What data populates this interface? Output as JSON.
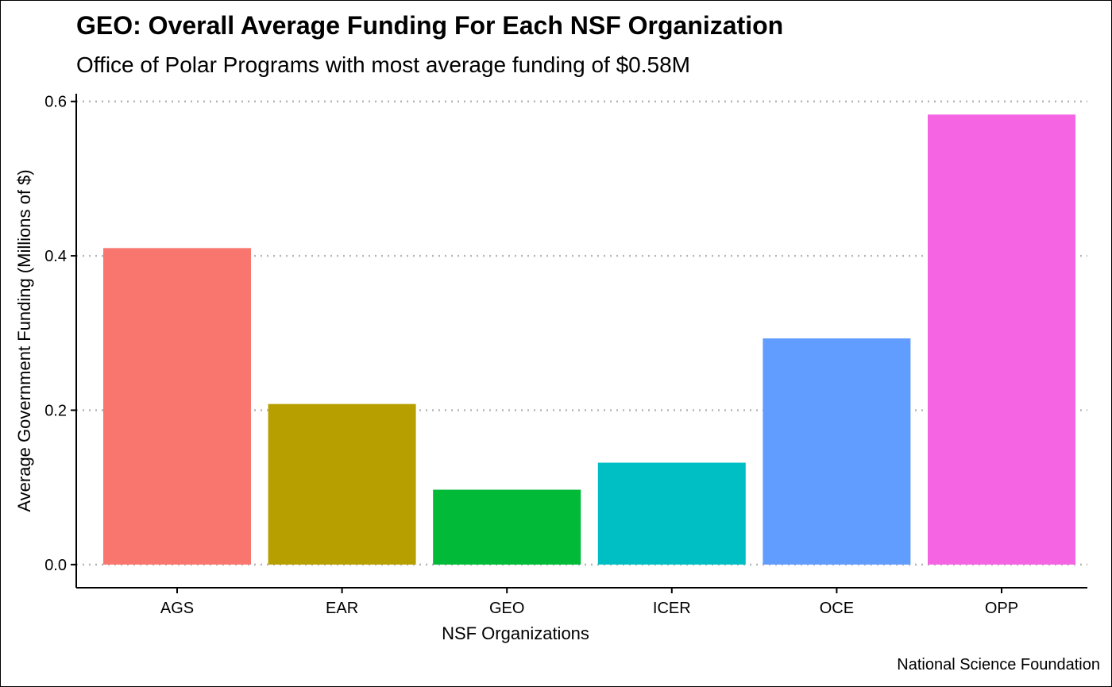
{
  "chart_data": {
    "type": "bar",
    "title": "GEO: Overall Average Funding For Each NSF Organization",
    "subtitle": "Office of Polar Programs with most average funding of $0.58M",
    "xlabel": "NSF Organizations",
    "ylabel": "Average Government Funding (Millions of $)",
    "caption": "National Science Foundation",
    "categories": [
      "AGS",
      "EAR",
      "GEO",
      "ICER",
      "OCE",
      "OPP"
    ],
    "values": [
      0.41,
      0.208,
      0.097,
      0.132,
      0.293,
      0.583
    ],
    "colors": [
      "#F8766D",
      "#B79F00",
      "#00BA38",
      "#00BFC4",
      "#619CFF",
      "#F564E3"
    ],
    "ylim": [
      -0.03,
      0.61
    ],
    "yticks": [
      0.0,
      0.2,
      0.4,
      0.6
    ],
    "ytick_labels": [
      "0.0",
      "0.2",
      "0.4",
      "0.6"
    ],
    "grid": "horizontal dotted",
    "legend": "none"
  }
}
